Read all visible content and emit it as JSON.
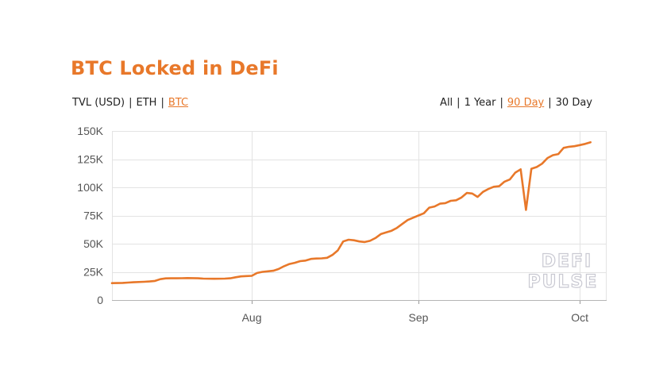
{
  "chart_title": "BTC Locked in DeFi",
  "unit_options": [
    {
      "label": "TVL (USD)",
      "active": false
    },
    {
      "label": "ETH",
      "active": false
    },
    {
      "label": "BTC",
      "active": true
    }
  ],
  "range_options": [
    {
      "label": "All",
      "active": false
    },
    {
      "label": "1 Year",
      "active": false
    },
    {
      "label": "90 Day",
      "active": true
    },
    {
      "label": "30 Day",
      "active": false
    }
  ],
  "separator": "|",
  "watermark": [
    "DEFI",
    "PULSE"
  ],
  "colors": {
    "accent": "#e8782a",
    "grid": "#e3e3e3",
    "text": "#222222"
  },
  "chart_data": {
    "type": "line",
    "title": "BTC Locked in DeFi",
    "xlabel": "",
    "ylabel": "",
    "ylim": [
      0,
      150000
    ],
    "yticks": [
      0,
      25000,
      50000,
      75000,
      100000,
      125000,
      150000
    ],
    "ytick_labels": [
      "0",
      "25K",
      "50K",
      "75K",
      "100K",
      "125K",
      "150K"
    ],
    "xlim": [
      "2020-07-06",
      "2020-10-06"
    ],
    "xticks": [
      {
        "date": "2020-08-01",
        "label": "Aug"
      },
      {
        "date": "2020-09-01",
        "label": "Sep"
      },
      {
        "date": "2020-10-01",
        "label": "Oct"
      }
    ],
    "grid": true,
    "series": [
      {
        "values": [
          [
            "2020-07-06",
            15000
          ],
          [
            "2020-07-08",
            15200
          ],
          [
            "2020-07-09",
            15500
          ],
          [
            "2020-07-10",
            15800
          ],
          [
            "2020-07-12",
            16200
          ],
          [
            "2020-07-13",
            16500
          ],
          [
            "2020-07-14",
            17000
          ],
          [
            "2020-07-15",
            18500
          ],
          [
            "2020-07-16",
            19200
          ],
          [
            "2020-07-17",
            19300
          ],
          [
            "2020-07-18",
            19300
          ],
          [
            "2020-07-19",
            19400
          ],
          [
            "2020-07-20",
            19500
          ],
          [
            "2020-07-22",
            19300
          ],
          [
            "2020-07-23",
            19000
          ],
          [
            "2020-07-25",
            18900
          ],
          [
            "2020-07-27",
            19000
          ],
          [
            "2020-07-28",
            19300
          ],
          [
            "2020-07-29",
            20200
          ],
          [
            "2020-07-30",
            21000
          ],
          [
            "2020-07-31",
            21300
          ],
          [
            "2020-08-01",
            21500
          ],
          [
            "2020-08-02",
            24000
          ],
          [
            "2020-08-03",
            25000
          ],
          [
            "2020-08-04",
            25500
          ],
          [
            "2020-08-05",
            26000
          ],
          [
            "2020-08-06",
            27500
          ],
          [
            "2020-08-07",
            30000
          ],
          [
            "2020-08-08",
            32000
          ],
          [
            "2020-08-09",
            33000
          ],
          [
            "2020-08-10",
            34500
          ],
          [
            "2020-08-11",
            35000
          ],
          [
            "2020-08-12",
            36500
          ],
          [
            "2020-08-13",
            36800
          ],
          [
            "2020-08-14",
            37000
          ],
          [
            "2020-08-15",
            37500
          ],
          [
            "2020-08-16",
            40000
          ],
          [
            "2020-08-17",
            44000
          ],
          [
            "2020-08-18",
            52000
          ],
          [
            "2020-08-19",
            53500
          ],
          [
            "2020-08-20",
            53000
          ],
          [
            "2020-08-21",
            52000
          ],
          [
            "2020-08-22",
            51500
          ],
          [
            "2020-08-23",
            52500
          ],
          [
            "2020-08-24",
            55000
          ],
          [
            "2020-08-25",
            58500
          ],
          [
            "2020-08-26",
            60000
          ],
          [
            "2020-08-27",
            61500
          ],
          [
            "2020-08-28",
            64000
          ],
          [
            "2020-08-29",
            67500
          ],
          [
            "2020-08-30",
            71000
          ],
          [
            "2020-08-31",
            73000
          ],
          [
            "2020-09-01",
            75000
          ],
          [
            "2020-09-02",
            77000
          ],
          [
            "2020-09-03",
            82000
          ],
          [
            "2020-09-04",
            83000
          ],
          [
            "2020-09-05",
            85500
          ],
          [
            "2020-09-06",
            86000
          ],
          [
            "2020-09-07",
            88000
          ],
          [
            "2020-09-08",
            88500
          ],
          [
            "2020-09-09",
            91000
          ],
          [
            "2020-09-10",
            95000
          ],
          [
            "2020-09-11",
            94500
          ],
          [
            "2020-09-12",
            91500
          ],
          [
            "2020-09-13",
            96000
          ],
          [
            "2020-09-14",
            98500
          ],
          [
            "2020-09-15",
            100500
          ],
          [
            "2020-09-16",
            101000
          ],
          [
            "2020-09-17",
            105000
          ],
          [
            "2020-09-18",
            107000
          ],
          [
            "2020-09-19",
            113000
          ],
          [
            "2020-09-20",
            116000
          ],
          [
            "2020-09-21",
            80000
          ],
          [
            "2020-09-22",
            116500
          ],
          [
            "2020-09-23",
            118000
          ],
          [
            "2020-09-24",
            121000
          ],
          [
            "2020-09-25",
            126000
          ],
          [
            "2020-09-26",
            128500
          ],
          [
            "2020-09-27",
            129500
          ],
          [
            "2020-09-28",
            135000
          ],
          [
            "2020-09-29",
            136000
          ],
          [
            "2020-09-30",
            136500
          ],
          [
            "2020-10-01",
            137500
          ],
          [
            "2020-10-02",
            138500
          ],
          [
            "2020-10-03",
            140000
          ]
        ]
      }
    ]
  }
}
